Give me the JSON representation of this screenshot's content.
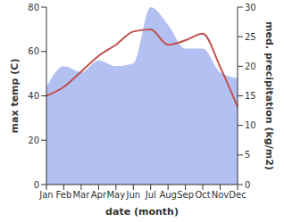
{
  "chart_data": {
    "type": "line",
    "categories": [
      "Jan",
      "Feb",
      "Mar",
      "Apr",
      "May",
      "Jun",
      "Jul",
      "Aug",
      "Sep",
      "Oct",
      "Nov",
      "Dec"
    ],
    "x_label": "date (month)",
    "y_label": "max temp (C)",
    "y2_label": "med. precipitation (kg/m2)",
    "ylim": [
      0,
      80
    ],
    "yticks": [
      0,
      20,
      40,
      60,
      80
    ],
    "y2lim": [
      0,
      30
    ],
    "y2ticks": [
      0,
      5,
      10,
      15,
      20,
      25,
      30
    ],
    "grid": false,
    "series": [
      {
        "name": "med. precipitation",
        "type": "area",
        "axis": "y2",
        "color": "#b3c0f2",
        "values": [
          16.5,
          20,
          19,
          21,
          20,
          20.5,
          30,
          27,
          23,
          23,
          19,
          18
        ]
      },
      {
        "name": "max temp",
        "type": "line",
        "axis": "y",
        "color": "#c0504d",
        "values": [
          40,
          44,
          51,
          58,
          63,
          69,
          70,
          63,
          65,
          68,
          53,
          35
        ]
      }
    ]
  }
}
